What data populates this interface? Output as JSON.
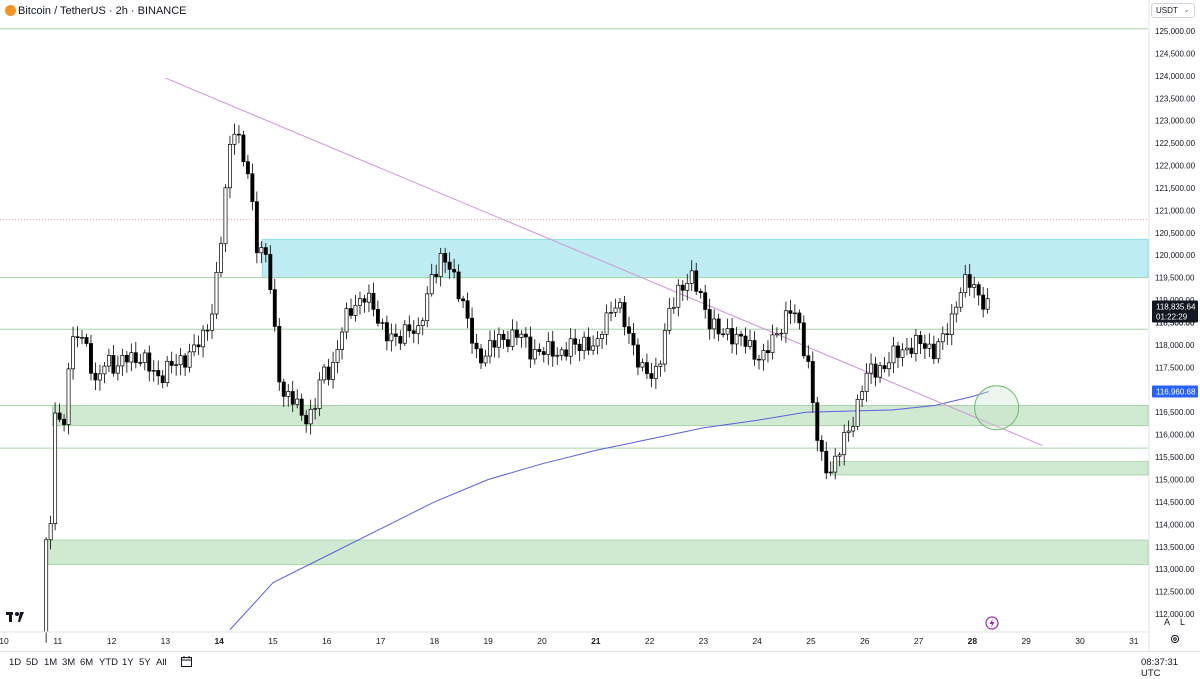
{
  "header": {
    "symbol_title": "Bitcoin / TetherUS · 2h · BINANCE",
    "currency": "USDT"
  },
  "bottom_bar": {
    "ranges": [
      "1D",
      "5D",
      "1M",
      "3M",
      "6M",
      "YTD",
      "1Y",
      "5Y",
      "All"
    ],
    "clock": "08:37:31 UTC"
  },
  "scale_buttons": {
    "auto": "A",
    "log": "L"
  },
  "colors": {
    "up_candle": "#ffffff",
    "down_candle": "#000000",
    "support_zone": "#c8e6c9",
    "resistance_zone": "#b2ebf2",
    "trendline": "#ce93d8",
    "moving_average": "#5b5fe0",
    "price_label_bg": "#131722",
    "ma_label_bg": "#2962ff"
  },
  "chart_data": {
    "type": "candlestick",
    "symbol": "BTCUSDT",
    "timeframe": "2h",
    "exchange": "BINANCE",
    "ylim": [
      111600,
      125200
    ],
    "y_ticks": [
      112000,
      112500,
      113000,
      113500,
      114000,
      114500,
      115000,
      115500,
      116000,
      116500,
      117000,
      117500,
      118000,
      118500,
      119000,
      119500,
      120000,
      120500,
      121000,
      121500,
      122000,
      122500,
      123000,
      123500,
      124000,
      124500,
      125000
    ],
    "y_tick_labels": [
      "112,000.00",
      "112,500.00",
      "113,000.00",
      "113,500.00",
      "114,000.00",
      "114,500.00",
      "115,000.00",
      "115,500.00",
      "116,000.00",
      "116,500.00",
      "117,000.00",
      "117,500.00",
      "118,000.00",
      "118,500.00",
      "119,000.00",
      "119,500.00",
      "120,000.00",
      "120,500.00",
      "121,000.00",
      "121,500.00",
      "122,000.00",
      "122,500.00",
      "123,000.00",
      "123,500.00",
      "124,000.00",
      "124,500.00",
      "125,000.00"
    ],
    "x_ticks": [
      {
        "label": "10",
        "day": 10
      },
      {
        "label": "11",
        "day": 11
      },
      {
        "label": "12",
        "day": 12
      },
      {
        "label": "13",
        "day": 13
      },
      {
        "label": "14",
        "day": 14,
        "bold": true
      },
      {
        "label": "15",
        "day": 15
      },
      {
        "label": "16",
        "day": 16
      },
      {
        "label": "17",
        "day": 17
      },
      {
        "label": "18",
        "day": 18
      },
      {
        "label": "19",
        "day": 19
      },
      {
        "label": "20",
        "day": 20
      },
      {
        "label": "21",
        "day": 21,
        "bold": true
      },
      {
        "label": "22",
        "day": 22
      },
      {
        "label": "23",
        "day": 23
      },
      {
        "label": "24",
        "day": 24
      },
      {
        "label": "25",
        "day": 25
      },
      {
        "label": "26",
        "day": 26
      },
      {
        "label": "27",
        "day": 27
      },
      {
        "label": "28",
        "day": 28,
        "bold": true
      },
      {
        "label": "29",
        "day": 29
      },
      {
        "label": "30",
        "day": 30
      },
      {
        "label": "31",
        "day": 31
      }
    ],
    "price_path": [
      [
        10.7,
        111600
      ],
      [
        10.75,
        113700
      ],
      [
        10.85,
        113300
      ],
      [
        10.95,
        116700
      ],
      [
        11.1,
        116000
      ],
      [
        11.2,
        117500
      ],
      [
        11.35,
        118300
      ],
      [
        11.5,
        118200
      ],
      [
        11.7,
        117000
      ],
      [
        11.9,
        117800
      ],
      [
        12.1,
        117400
      ],
      [
        12.3,
        117800
      ],
      [
        12.5,
        117700
      ],
      [
        12.7,
        117500
      ],
      [
        12.9,
        117300
      ],
      [
        13.1,
        117500
      ],
      [
        13.3,
        117700
      ],
      [
        13.5,
        117800
      ],
      [
        13.7,
        118200
      ],
      [
        13.9,
        118900
      ],
      [
        14.05,
        120500
      ],
      [
        14.2,
        122500
      ],
      [
        14.3,
        123000
      ],
      [
        14.4,
        122300
      ],
      [
        14.55,
        121700
      ],
      [
        14.7,
        120300
      ],
      [
        14.9,
        119900
      ],
      [
        15.05,
        118000
      ],
      [
        15.15,
        117000
      ],
      [
        15.35,
        116800
      ],
      [
        15.55,
        116400
      ],
      [
        15.75,
        116500
      ],
      [
        15.9,
        117300
      ],
      [
        16.1,
        117500
      ],
      [
        16.3,
        118400
      ],
      [
        16.5,
        118900
      ],
      [
        16.7,
        119100
      ],
      [
        16.9,
        118700
      ],
      [
        17.1,
        118300
      ],
      [
        17.3,
        118000
      ],
      [
        17.5,
        118500
      ],
      [
        17.7,
        118200
      ],
      [
        17.8,
        118700
      ],
      [
        17.95,
        119600
      ],
      [
        18.15,
        119900
      ],
      [
        18.35,
        119600
      ],
      [
        18.5,
        119100
      ],
      [
        18.65,
        118300
      ],
      [
        18.8,
        117700
      ],
      [
        19.0,
        117900
      ],
      [
        19.2,
        118100
      ],
      [
        19.4,
        118200
      ],
      [
        19.6,
        118200
      ],
      [
        19.8,
        117900
      ],
      [
        20.0,
        117800
      ],
      [
        20.2,
        117900
      ],
      [
        20.4,
        117800
      ],
      [
        20.6,
        118000
      ],
      [
        20.8,
        118100
      ],
      [
        21.0,
        117800
      ],
      [
        21.15,
        118600
      ],
      [
        21.35,
        118900
      ],
      [
        21.5,
        118600
      ],
      [
        21.65,
        118200
      ],
      [
        21.85,
        117400
      ],
      [
        22.0,
        117300
      ],
      [
        22.15,
        117500
      ],
      [
        22.35,
        118600
      ],
      [
        22.55,
        119300
      ],
      [
        22.75,
        119500
      ],
      [
        22.95,
        119100
      ],
      [
        23.1,
        118600
      ],
      [
        23.3,
        118200
      ],
      [
        23.5,
        118300
      ],
      [
        23.7,
        118100
      ],
      [
        23.9,
        117900
      ],
      [
        24.1,
        117700
      ],
      [
        24.3,
        118100
      ],
      [
        24.5,
        118600
      ],
      [
        24.65,
        118800
      ],
      [
        24.8,
        118300
      ],
      [
        24.95,
        117600
      ],
      [
        25.1,
        116000
      ],
      [
        25.2,
        115400
      ],
      [
        25.35,
        115200
      ],
      [
        25.5,
        115600
      ],
      [
        25.65,
        115900
      ],
      [
        25.8,
        116400
      ],
      [
        25.95,
        117100
      ],
      [
        26.1,
        117400
      ],
      [
        26.3,
        117500
      ],
      [
        26.5,
        117700
      ],
      [
        26.7,
        117900
      ],
      [
        26.9,
        118000
      ],
      [
        27.1,
        118000
      ],
      [
        27.3,
        117900
      ],
      [
        27.45,
        118100
      ],
      [
        27.6,
        118500
      ],
      [
        27.7,
        119000
      ],
      [
        27.8,
        119300
      ],
      [
        27.9,
        119400
      ],
      [
        28.0,
        119300
      ],
      [
        28.15,
        119100
      ],
      [
        28.3,
        118836
      ]
    ],
    "zones": [
      {
        "kind": "resistance",
        "from_day": 14.8,
        "price_low": 119500,
        "price_high": 120350
      },
      {
        "kind": "support",
        "from_day": 10.9,
        "price_low": 116200,
        "price_high": 116650
      },
      {
        "kind": "support",
        "from_day": 25.4,
        "price_low": 115100,
        "price_high": 115400
      },
      {
        "kind": "support",
        "from_day": 10.8,
        "price_low": 113100,
        "price_high": 113650
      }
    ],
    "horizontal_lines": [
      125050,
      119500,
      118350,
      116650,
      115700
    ],
    "dotted_line": 120800,
    "trendline": [
      [
        13.0,
        123950
      ],
      [
        29.3,
        115760
      ]
    ],
    "moving_average": [
      [
        14.2,
        111650
      ],
      [
        15.0,
        112700
      ],
      [
        16.0,
        113300
      ],
      [
        17.0,
        113900
      ],
      [
        18.0,
        114500
      ],
      [
        19.0,
        115000
      ],
      [
        20.0,
        115350
      ],
      [
        21.0,
        115650
      ],
      [
        22.0,
        115900
      ],
      [
        23.0,
        116150
      ],
      [
        24.0,
        116320
      ],
      [
        24.9,
        116500
      ],
      [
        25.5,
        116520
      ],
      [
        26.5,
        116550
      ],
      [
        27.3,
        116650
      ],
      [
        28.0,
        116850
      ],
      [
        28.3,
        116960
      ]
    ],
    "circle_marker": {
      "day": 28.45,
      "price": 116600,
      "label": ""
    },
    "current_price": {
      "label": "118,835.64",
      "value": 118835.64,
      "countdown": "01:22:29",
      "partial_value": "118,500.00"
    },
    "ma_value": {
      "label": "116,960.68",
      "value": 116960.68
    }
  }
}
